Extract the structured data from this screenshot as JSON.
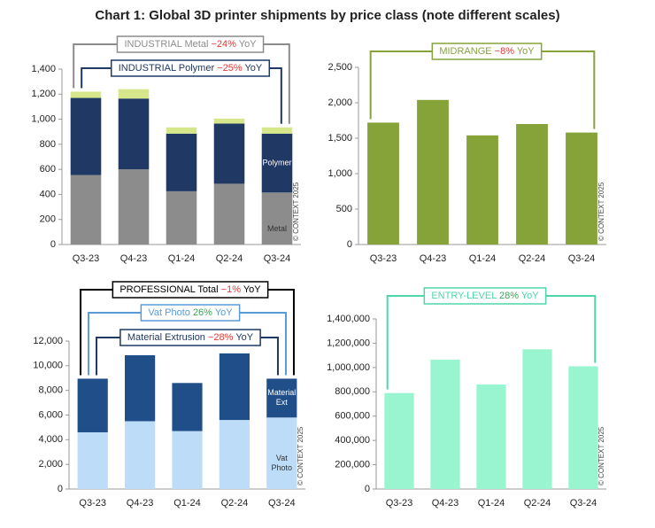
{
  "title": "Chart 1: Global 3D printer shipments by price class (note different scales)",
  "chart_data": [
    {
      "type": "bar",
      "stacked": true,
      "categories": [
        "Q3-23",
        "Q4-23",
        "Q1-24",
        "Q2-24",
        "Q3-24"
      ],
      "series": [
        {
          "name": "Metal",
          "color": "#8c8c8c",
          "values": [
            555,
            600,
            425,
            485,
            415
          ]
        },
        {
          "name": "Polymer",
          "color": "#1f3864",
          "values": [
            615,
            565,
            460,
            480,
            470
          ]
        },
        {
          "color": "#d6e68a",
          "values": [
            50,
            75,
            50,
            40,
            50
          ]
        }
      ],
      "ylim": [
        0,
        1400
      ],
      "yticks": [
        0,
        200,
        400,
        600,
        800,
        {
          "value": 1000,
          "label": "1,000"
        },
        {
          "value": 1200,
          "label": "1,200"
        },
        {
          "value": 1400,
          "label": "1,400"
        }
      ],
      "watermark": "© CONTEXT 2025",
      "annotations": [
        {
          "label": "INDUSTRIAL Metal",
          "change": "−24%",
          "suffix": "YoY",
          "color": "#8c8c8c",
          "change_color": "#e53935"
        },
        {
          "label": "INDUSTRIAL Polymer",
          "change": "−25%",
          "suffix": "YoY",
          "color": "#1f3864",
          "change_color": "#e53935"
        }
      ]
    },
    {
      "type": "bar",
      "categories": [
        "Q3-23",
        "Q4-23",
        "Q1-24",
        "Q2-24",
        "Q3-24"
      ],
      "values": [
        1720,
        2040,
        1540,
        1700,
        1580
      ],
      "color": "#86a33a",
      "ylim": [
        0,
        2500
      ],
      "yticks": [
        0,
        500,
        {
          "value": 1000,
          "label": "1,000"
        },
        {
          "value": 1500,
          "label": "1,500"
        },
        {
          "value": 2000,
          "label": "2,000"
        },
        {
          "value": 2500,
          "label": "2,500"
        }
      ],
      "watermark": "© CONTEXT 2025",
      "annotations": [
        {
          "label": "MIDRANGE",
          "change": "−8%",
          "suffix": "YoY",
          "color": "#86a33a",
          "change_color": "#e53935"
        }
      ]
    },
    {
      "type": "bar",
      "stacked": true,
      "categories": [
        "Q3-23",
        "Q4-23",
        "Q1-24",
        "Q2-24",
        "Q3-24"
      ],
      "series": [
        {
          "name": "Vat Photo",
          "color": "#bddcf7",
          "values": [
            4600,
            5500,
            4700,
            5600,
            5800
          ]
        },
        {
          "name": "Material Ext",
          "color": "#1f4e89",
          "values": [
            4350,
            5350,
            3900,
            5400,
            3150
          ]
        }
      ],
      "ylim": [
        0,
        12000
      ],
      "yticks": [
        0,
        {
          "value": 2000,
          "label": "2,000"
        },
        {
          "value": 4000,
          "label": "4,000"
        },
        {
          "value": 6000,
          "label": "6,000"
        },
        {
          "value": 8000,
          "label": "8,000"
        },
        {
          "value": 10000,
          "label": "10,000"
        },
        {
          "value": 12000,
          "label": "12,000"
        }
      ],
      "watermark": "© CONTEXT 2025",
      "annotations": [
        {
          "label": "PROFESSIONAL Total",
          "change": "−1%",
          "suffix": "YoY",
          "color": "#000000",
          "change_color": "#e53935"
        },
        {
          "label": "Vat Photo",
          "change": "26%",
          "suffix": "YoY",
          "color": "#5b9bd5",
          "change_color": "#3aa655"
        },
        {
          "label": "Material Extrusion",
          "change": "−28%",
          "suffix": "YoY",
          "color": "#1f3864",
          "change_color": "#e53935"
        }
      ]
    },
    {
      "type": "bar",
      "categories": [
        "Q3-23",
        "Q4-23",
        "Q1-24",
        "Q2-24",
        "Q3-24"
      ],
      "values": [
        790000,
        1065000,
        860000,
        1150000,
        1010000
      ],
      "color": "#99f5d0",
      "ylim": [
        0,
        1400000
      ],
      "yticks": [
        0,
        {
          "value": 200000,
          "label": "200,000"
        },
        {
          "value": 400000,
          "label": "400,000"
        },
        {
          "value": 600000,
          "label": "600,000"
        },
        {
          "value": 800000,
          "label": "800,000"
        },
        {
          "value": 1000000,
          "label": "1,000,000"
        },
        {
          "value": 1200000,
          "label": "1,200,000"
        },
        {
          "value": 1400000,
          "label": "1,400,000"
        }
      ],
      "watermark": "© CONTEXT 2025",
      "annotations": [
        {
          "label": "ENTRY-LEVEL",
          "change": "28%",
          "suffix": "YoY",
          "color": "#4fd6a8",
          "change_color": "#3aa655"
        }
      ]
    }
  ]
}
